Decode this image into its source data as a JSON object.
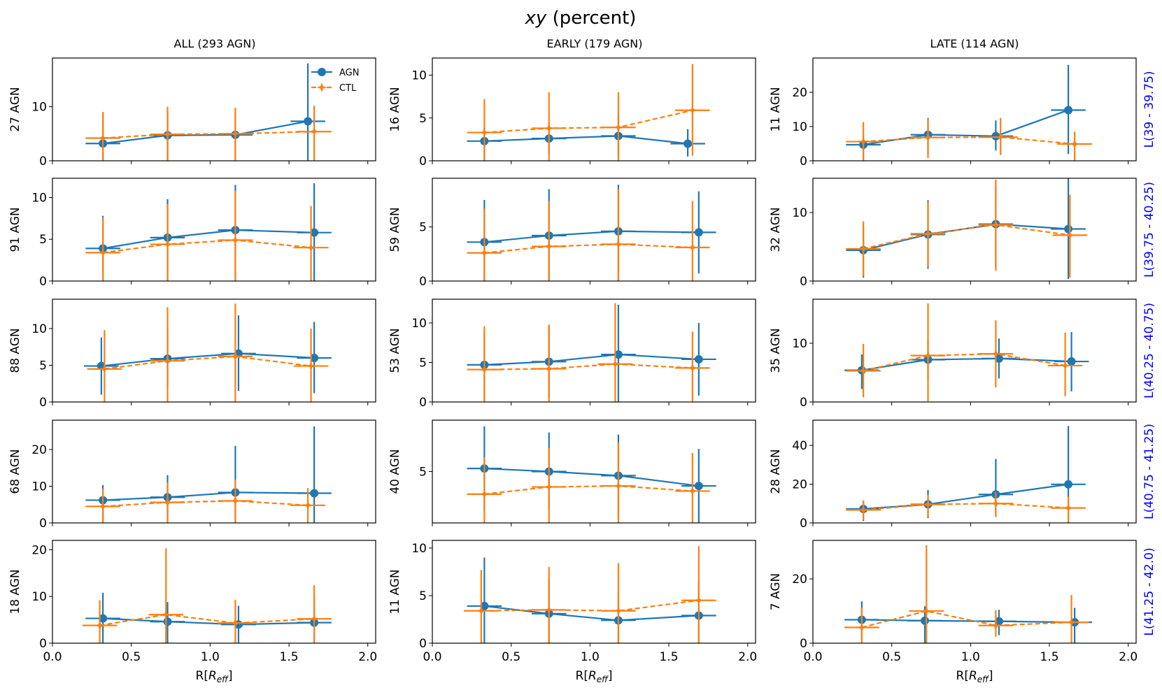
{
  "chart_data": {
    "type": "line",
    "title_italic": "xy",
    "title_rest": " (percent)",
    "xlabel_main": "R[",
    "xlabel_sym": "R",
    "xlabel_sub": "eff",
    "xlabel_end": "]",
    "xlim": [
      0,
      2.05
    ],
    "xticks": [
      0.0,
      0.5,
      1.0,
      1.5,
      2.0
    ],
    "xtick_labels": [
      "0.0",
      "0.5",
      "1.0",
      "1.5",
      "2.0"
    ],
    "legend": {
      "agn": "AGN",
      "ctl": "CTL"
    },
    "colors": {
      "agn": "#1f77b4",
      "ctl": "#ff7f0e",
      "rowlabel": "#0000ff"
    },
    "columns": [
      "ALL (293 AGN)",
      "EARLY (179 AGN)",
      "LATE (114 AGN)"
    ],
    "rows": [
      "L(39 - 39.75)",
      "L(39.75 - 40.25)",
      "L(40.25 - 40.75)",
      "L(40.75 - 41.25)",
      "L(41.25 - 42.0)"
    ],
    "panels": [
      [
        {
          "ylabel": "27 AGN",
          "ylim": [
            0,
            19
          ],
          "yticks": [
            0,
            10
          ],
          "agn": {
            "x": [
              0.32,
              0.73,
              1.16,
              1.62
            ],
            "y": [
              3.2,
              4.7,
              4.8,
              7.3
            ],
            "ylo": [
              0,
              0,
              0,
              0
            ],
            "yhi": [
              9.0,
              9.0,
              9.0,
              18.0
            ]
          },
          "ctl": {
            "x": [
              0.32,
              0.73,
              1.16,
              1.66
            ],
            "y": [
              4.2,
              4.9,
              5.0,
              5.4
            ],
            "ylo": [
              0,
              0,
              0,
              0
            ],
            "yhi": [
              9.0,
              10.0,
              9.8,
              10.2
            ]
          }
        },
        {
          "ylabel": "16 AGN",
          "ylim": [
            0,
            12
          ],
          "yticks": [
            0,
            5,
            10
          ],
          "agn": {
            "x": [
              0.33,
              0.74,
              1.18,
              1.62
            ],
            "y": [
              2.3,
              2.6,
              2.9,
              2.0
            ],
            "ylo": [
              0,
              0.8,
              0.5,
              0.5
            ],
            "yhi": [
              4.0,
              4.3,
              5.3,
              3.7
            ]
          },
          "ctl": {
            "x": [
              0.33,
              0.74,
              1.18,
              1.65
            ],
            "y": [
              3.3,
              3.8,
              3.9,
              5.9
            ],
            "ylo": [
              0,
              0,
              0,
              0.6
            ],
            "yhi": [
              7.2,
              8.0,
              8.0,
              11.3
            ]
          }
        },
        {
          "ylabel": "11 AGN",
          "ylim": [
            0,
            30
          ],
          "yticks": [
            0,
            10,
            20
          ],
          "agn": {
            "x": [
              0.32,
              0.73,
              1.16,
              1.62
            ],
            "y": [
              4.7,
              7.6,
              7.2,
              14.8
            ],
            "ylo": [
              0,
              2,
              3,
              2
            ],
            "yhi": [
              7.8,
              12.5,
              11.8,
              28.0
            ]
          },
          "ctl": {
            "x": [
              0.32,
              0.73,
              1.19,
              1.66
            ],
            "y": [
              5.6,
              6.8,
              6.9,
              4.9
            ],
            "ylo": [
              0,
              0.8,
              1.7,
              0
            ],
            "yhi": [
              11.3,
              12.2,
              12.5,
              8.5
            ]
          }
        }
      ],
      [
        {
          "ylabel": "91 AGN",
          "ylim": [
            0,
            12.3
          ],
          "yticks": [
            0,
            5,
            10
          ],
          "agn": {
            "x": [
              0.32,
              0.73,
              1.16,
              1.66
            ],
            "y": [
              3.9,
              5.2,
              6.1,
              5.8
            ],
            "ylo": [
              0,
              0,
              0,
              0
            ],
            "yhi": [
              7.8,
              9.8,
              11.5,
              11.7
            ]
          },
          "ctl": {
            "x": [
              0.32,
              0.73,
              1.16,
              1.64
            ],
            "y": [
              3.4,
              4.4,
              4.9,
              4.0
            ],
            "ylo": [
              0,
              0,
              0,
              0
            ],
            "yhi": [
              7.6,
              9.2,
              10.8,
              9.0
            ]
          }
        },
        {
          "ylabel": "59 AGN",
          "ylim": [
            0,
            9.5
          ],
          "yticks": [
            0,
            5
          ],
          "agn": {
            "x": [
              0.33,
              0.74,
              1.18,
              1.69
            ],
            "y": [
              3.6,
              4.2,
              4.6,
              4.5
            ],
            "ylo": [
              0,
              0,
              0,
              0.7
            ],
            "yhi": [
              7.5,
              8.5,
              8.9,
              8.3
            ]
          },
          "ctl": {
            "x": [
              0.33,
              0.74,
              1.18,
              1.65
            ],
            "y": [
              2.6,
              3.2,
              3.4,
              3.1
            ],
            "ylo": [
              0,
              0,
              0,
              0
            ],
            "yhi": [
              6.7,
              7.4,
              8.5,
              7.4
            ]
          }
        },
        {
          "ylabel": "32 AGN",
          "ylim": [
            0,
            15
          ],
          "yticks": [
            0,
            10
          ],
          "agn": {
            "x": [
              0.32,
              0.73,
              1.16,
              1.62
            ],
            "y": [
              4.5,
              6.8,
              8.3,
              7.6
            ],
            "ylo": [
              0.5,
              1.8,
              2,
              0.3
            ],
            "yhi": [
              8.0,
              11.8,
              14.0,
              15.0
            ]
          },
          "ctl": {
            "x": [
              0.32,
              0.73,
              1.16,
              1.63
            ],
            "y": [
              4.7,
              6.9,
              8.2,
              6.7
            ],
            "ylo": [
              0.7,
              2.1,
              1.5,
              0.5
            ],
            "yhi": [
              8.7,
              11.5,
              14.8,
              12.6
            ]
          }
        }
      ],
      [
        {
          "ylabel": "88 AGN",
          "ylim": [
            0,
            14
          ],
          "yticks": [
            0,
            5,
            10
          ],
          "agn": {
            "x": [
              0.31,
              0.73,
              1.18,
              1.66
            ],
            "y": [
              4.9,
              5.9,
              6.6,
              6.0
            ],
            "ylo": [
              1,
              2,
              1.5,
              1.2
            ],
            "yhi": [
              8.8,
              10.0,
              11.8,
              10.9
            ]
          },
          "ctl": {
            "x": [
              0.33,
              0.73,
              1.16,
              1.64
            ],
            "y": [
              4.5,
              5.6,
              6.2,
              4.9
            ],
            "ylo": [
              0,
              0,
              0,
              0
            ],
            "yhi": [
              9.8,
              12.9,
              13.4,
              10.0
            ]
          }
        },
        {
          "ylabel": "53 AGN",
          "ylim": [
            0,
            13
          ],
          "yticks": [
            0,
            5,
            10
          ],
          "agn": {
            "x": [
              0.33,
              0.74,
              1.18,
              1.69
            ],
            "y": [
              4.7,
              5.1,
              6.0,
              5.4
            ],
            "ylo": [
              0,
              0.5,
              0,
              0.8
            ],
            "yhi": [
              9.0,
              9.5,
              12.3,
              10.0
            ]
          },
          "ctl": {
            "x": [
              0.33,
              0.74,
              1.16,
              1.65
            ],
            "y": [
              4.1,
              4.2,
              4.8,
              4.3
            ],
            "ylo": [
              0,
              0,
              0,
              0
            ],
            "yhi": [
              9.6,
              9.8,
              12.5,
              8.9
            ]
          }
        },
        {
          "ylabel": "35 AGN",
          "ylim": [
            0,
            17.5
          ],
          "yticks": [
            0,
            10
          ],
          "agn": {
            "x": [
              0.31,
              0.73,
              1.18,
              1.64
            ],
            "y": [
              5.4,
              7.2,
              7.4,
              6.9
            ],
            "ylo": [
              2.2,
              3.8,
              4,
              1.8
            ],
            "yhi": [
              8.1,
              10.6,
              10.8,
              11.9
            ]
          },
          "ctl": {
            "x": [
              0.32,
              0.73,
              1.16,
              1.6
            ],
            "y": [
              5.3,
              7.9,
              8.2,
              6.2
            ],
            "ylo": [
              0.8,
              0,
              2.5,
              1
            ],
            "yhi": [
              9.9,
              16.8,
              13.9,
              11.8
            ]
          }
        }
      ],
      [
        {
          "ylabel": "68 AGN",
          "ylim": [
            0,
            28
          ],
          "yticks": [
            0,
            10,
            20
          ],
          "agn": {
            "x": [
              0.32,
              0.73,
              1.16,
              1.66
            ],
            "y": [
              6.2,
              7.0,
              8.3,
              8.1
            ],
            "ylo": [
              0,
              1,
              0,
              0
            ],
            "yhi": [
              10.3,
              13.0,
              21.0,
              26.3
            ]
          },
          "ctl": {
            "x": [
              0.32,
              0.73,
              1.16,
              1.62
            ],
            "y": [
              4.5,
              5.6,
              6.0,
              4.8
            ],
            "ylo": [
              0,
              0,
              0,
              0
            ],
            "yhi": [
              9.3,
              11.0,
              11.8,
              9.5
            ]
          }
        },
        {
          "ylabel": "40 AGN",
          "ylim": [
            0,
            10
          ],
          "yticks": [
            5
          ],
          "agn": {
            "x": [
              0.33,
              0.74,
              1.18,
              1.69
            ],
            "y": [
              5.3,
              5.0,
              4.6,
              3.6
            ],
            "ylo": [
              1.2,
              1.3,
              0.8,
              0
            ],
            "yhi": [
              9.4,
              8.8,
              8.6,
              7.2
            ]
          },
          "ctl": {
            "x": [
              0.33,
              0.74,
              1.18,
              1.65
            ],
            "y": [
              2.8,
              3.5,
              3.6,
              3.1
            ],
            "ylo": [
              0,
              0,
              0,
              0
            ],
            "yhi": [
              6.4,
              7.3,
              7.8,
              6.8
            ]
          }
        },
        {
          "ylabel": "28 AGN",
          "ylim": [
            0,
            53
          ],
          "yticks": [
            0,
            20,
            40
          ],
          "agn": {
            "x": [
              0.32,
              0.73,
              1.16,
              1.62
            ],
            "y": [
              7.2,
              9.6,
              14.7,
              19.9
            ],
            "ylo": [
              1,
              2.5,
              4,
              0
            ],
            "yhi": [
              11.5,
              17.0,
              33.0,
              50.0
            ]
          },
          "ctl": {
            "x": [
              0.32,
              0.73,
              1.16,
              1.62
            ],
            "y": [
              6.7,
              9.5,
              10.0,
              7.7
            ],
            "ylo": [
              1.5,
              3,
              3,
              0.5
            ],
            "yhi": [
              11.5,
              14.5,
              16.0,
              13.5
            ]
          }
        }
      ],
      [
        {
          "ylabel": "18 AGN",
          "ylim": [
            0,
            22
          ],
          "yticks": [
            0,
            10,
            20
          ],
          "agn": {
            "x": [
              0.32,
              0.73,
              1.18,
              1.66
            ],
            "y": [
              5.3,
              4.6,
              4.0,
              4.4
            ],
            "ylo": [
              0,
              0,
              0,
              0
            ],
            "yhi": [
              10.8,
              8.8,
              8.0,
              9.6
            ]
          },
          "ctl": {
            "x": [
              0.3,
              0.72,
              1.16,
              1.66
            ],
            "y": [
              3.8,
              6.1,
              4.3,
              5.2
            ],
            "ylo": [
              0,
              0,
              0,
              0
            ],
            "yhi": [
              9.2,
              20.3,
              9.3,
              12.4
            ]
          }
        },
        {
          "ylabel": "11 AGN",
          "ylim": [
            0,
            10.8
          ],
          "yticks": [
            0,
            5,
            10
          ],
          "agn": {
            "x": [
              0.33,
              0.74,
              1.18,
              1.69
            ],
            "y": [
              3.9,
              3.1,
              2.4,
              2.9
            ],
            "ylo": [
              0,
              0,
              0,
              0
            ],
            "yhi": [
              9.0,
              6.8,
              5.3,
              6.5
            ]
          },
          "ctl": {
            "x": [
              0.31,
              0.74,
              1.18,
              1.69
            ],
            "y": [
              3.4,
              3.5,
              3.4,
              4.5
            ],
            "ylo": [
              0,
              0,
              0,
              0
            ],
            "yhi": [
              7.7,
              8.0,
              8.4,
              10.2
            ]
          }
        },
        {
          "ylabel": "7 AGN",
          "ylim": [
            0,
            32
          ],
          "yticks": [
            0,
            20
          ],
          "agn": {
            "x": [
              0.31,
              0.71,
              1.18,
              1.66
            ],
            "y": [
              7.3,
              7.0,
              6.8,
              6.5
            ],
            "ylo": [
              1,
              0,
              2.5,
              0
            ],
            "yhi": [
              13.0,
              11.5,
              10.4,
              11.0
            ]
          },
          "ctl": {
            "x": [
              0.31,
              0.72,
              1.16,
              1.64
            ],
            "y": [
              4.9,
              10.0,
              5.5,
              6.5
            ],
            "ylo": [
              0,
              0,
              2,
              0
            ],
            "yhi": [
              11.0,
              30.5,
              10.3,
              15.0
            ]
          }
        }
      ]
    ]
  }
}
